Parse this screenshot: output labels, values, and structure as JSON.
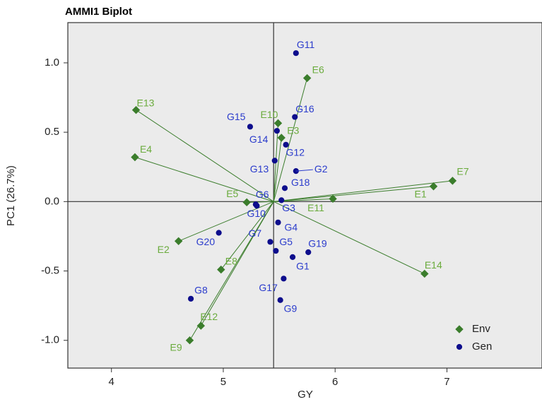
{
  "chart_data": {
    "type": "scatter",
    "title": "AMMI1 Biplot",
    "x_label": "GY",
    "y_label": "PC1 (26.7%)",
    "xlim": [
      3.61,
      7.85
    ],
    "ylim": [
      -1.2,
      1.29
    ],
    "xticks": [
      4,
      5,
      6,
      7
    ],
    "yticks": [
      {
        "value": 1.0,
        "label": "1.0"
      },
      0.5,
      {
        "value": 0.0,
        "label": "0.0"
      },
      -0.5,
      {
        "value": -1.0,
        "label": "-1.0"
      }
    ],
    "origin": {
      "x": 5.45,
      "y": 0
    },
    "legend": "lower right",
    "series": [
      {
        "name": "Env",
        "color": "#3b7d2c",
        "label_color": "#6aab3c",
        "marker": "diamond",
        "vectors": true,
        "labels": [
          "E13",
          "E4",
          "E6",
          "E10",
          "E3",
          "E7",
          "E1",
          "E11",
          "E5",
          "E2",
          "E8",
          "E14",
          "E12",
          "E9"
        ],
        "x": [
          4.22,
          4.21,
          5.75,
          5.49,
          5.52,
          7.05,
          6.88,
          5.98,
          5.21,
          4.6,
          4.98,
          6.8,
          4.8,
          4.7
        ],
        "values": [
          0.66,
          0.32,
          0.89,
          0.565,
          0.46,
          0.15,
          0.11,
          0.02,
          -0.005,
          -0.285,
          -0.49,
          -0.52,
          -0.895,
          -1.0
        ]
      },
      {
        "name": "Gen",
        "color": "#0d0d8c",
        "label_color": "#2a3bcc",
        "marker": "circle",
        "vectors": false,
        "labels": [
          "G11",
          "G16",
          "G15",
          "G14",
          "G12",
          "G13",
          "G2",
          "G18",
          "G6",
          "G10",
          "G3",
          "G4",
          "G7",
          "G5",
          "G20",
          "G19",
          "G1",
          "G17",
          "G8",
          "G9"
        ],
        "x": [
          5.65,
          5.64,
          5.24,
          5.48,
          5.56,
          5.46,
          5.65,
          5.55,
          5.29,
          5.3,
          5.52,
          5.49,
          5.42,
          5.47,
          4.96,
          5.76,
          5.62,
          5.54,
          4.71,
          5.51
        ],
        "values": [
          1.07,
          0.61,
          0.54,
          0.51,
          0.41,
          0.295,
          0.22,
          0.097,
          -0.02,
          -0.03,
          0.01,
          -0.15,
          -0.29,
          -0.355,
          -0.225,
          -0.365,
          -0.4,
          -0.555,
          -0.7,
          -0.71
        ]
      }
    ]
  }
}
